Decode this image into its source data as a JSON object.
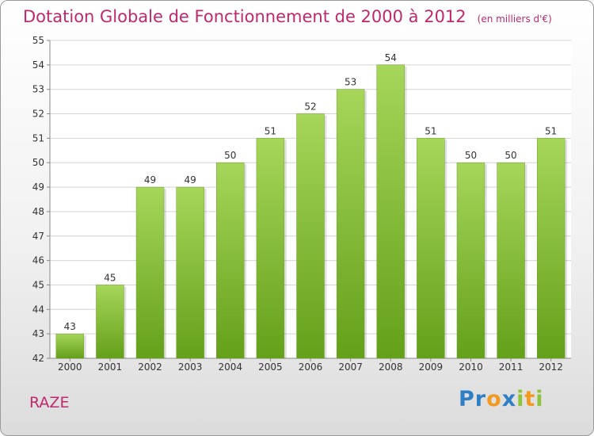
{
  "title": "Dotation Globale de Fonctionnement de 2000 à 2012",
  "subtitle": "(en milliers d'€)",
  "footer_label": "RAZE",
  "logo": {
    "letters": [
      "P",
      "r",
      "o",
      "x",
      "i",
      "t",
      "i"
    ],
    "colors": [
      "#2f7fc4",
      "#2f7fc4",
      "#f19a1f",
      "#2f7fc4",
      "#8cc43c",
      "#f19a1f",
      "#8cc43c"
    ]
  },
  "colors": {
    "bar_top": "#a6d65a",
    "bar_bottom": "#64a01a",
    "accent": "#c0286e",
    "grid": "#d4d4d4"
  },
  "chart_data": {
    "type": "bar",
    "categories": [
      "2000",
      "2001",
      "2002",
      "2003",
      "2004",
      "2005",
      "2006",
      "2007",
      "2008",
      "2009",
      "2010",
      "2011",
      "2012"
    ],
    "values": [
      43,
      45,
      49,
      49,
      50,
      51,
      52,
      53,
      54,
      51,
      50,
      50,
      51
    ],
    "data_labels": [
      "43",
      "45",
      "49",
      "49",
      "50",
      "51",
      "52",
      "53",
      "54",
      "51",
      "50",
      "50",
      "51"
    ],
    "yticks": [
      "42",
      "43",
      "44",
      "45",
      "46",
      "47",
      "48",
      "49",
      "50",
      "51",
      "52",
      "53",
      "54",
      "55"
    ],
    "ylim": [
      42,
      55
    ],
    "grid": true,
    "xlabel": "",
    "ylabel": ""
  }
}
